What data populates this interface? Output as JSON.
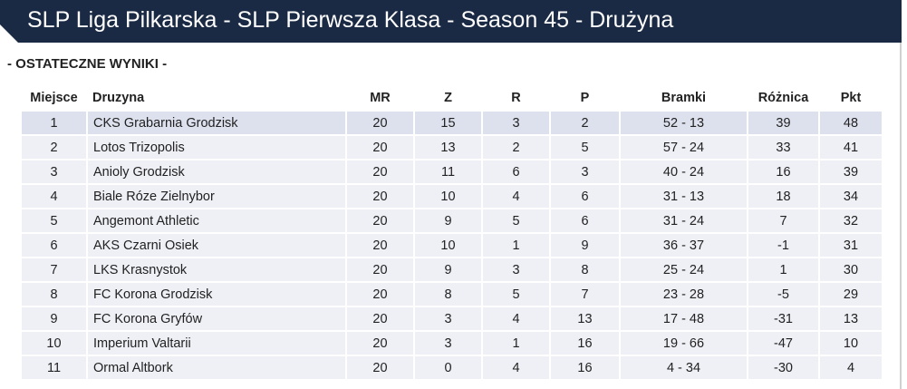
{
  "header": {
    "title": "SLP Liga Pilkarska - SLP Pierwsza Klasa - Season 45 - Drużyna"
  },
  "section": {
    "title": "- OSTATECZNE WYNIKI -"
  },
  "table": {
    "columns": [
      "Miejsce",
      "Druzyna",
      "MR",
      "Z",
      "R",
      "P",
      "Bramki",
      "Różnica",
      "Pkt"
    ],
    "rows": [
      [
        1,
        "CKS Grabarnia Grodzisk",
        20,
        15,
        3,
        2,
        "52 - 13",
        39,
        48
      ],
      [
        2,
        "Lotos Trizopolis",
        20,
        13,
        2,
        5,
        "57 - 24",
        33,
        41
      ],
      [
        3,
        "Anioly Grodzisk",
        20,
        11,
        6,
        3,
        "40 - 24",
        16,
        39
      ],
      [
        4,
        "Biale Róze Zielnybor",
        20,
        10,
        4,
        6,
        "31 - 13",
        18,
        34
      ],
      [
        5,
        "Angemont Athletic",
        20,
        9,
        5,
        6,
        "31 - 24",
        7,
        32
      ],
      [
        6,
        "AKS Czarni Osiek",
        20,
        10,
        1,
        9,
        "36 - 37",
        -1,
        31
      ],
      [
        7,
        "LKS Krasnystok",
        20,
        9,
        3,
        8,
        "25 - 24",
        1,
        30
      ],
      [
        8,
        "FC Korona Grodzisk",
        20,
        8,
        5,
        7,
        "23 - 28",
        -5,
        29
      ],
      [
        9,
        "FC Korona Gryfów",
        20,
        3,
        4,
        13,
        "17 - 48",
        -31,
        13
      ],
      [
        10,
        "Imperium Valtarii",
        20,
        3,
        1,
        16,
        "19 - 66",
        -47,
        10
      ],
      [
        11,
        "Ormal Altbork",
        20,
        0,
        4,
        16,
        "4 - 34",
        -30,
        4
      ]
    ]
  }
}
